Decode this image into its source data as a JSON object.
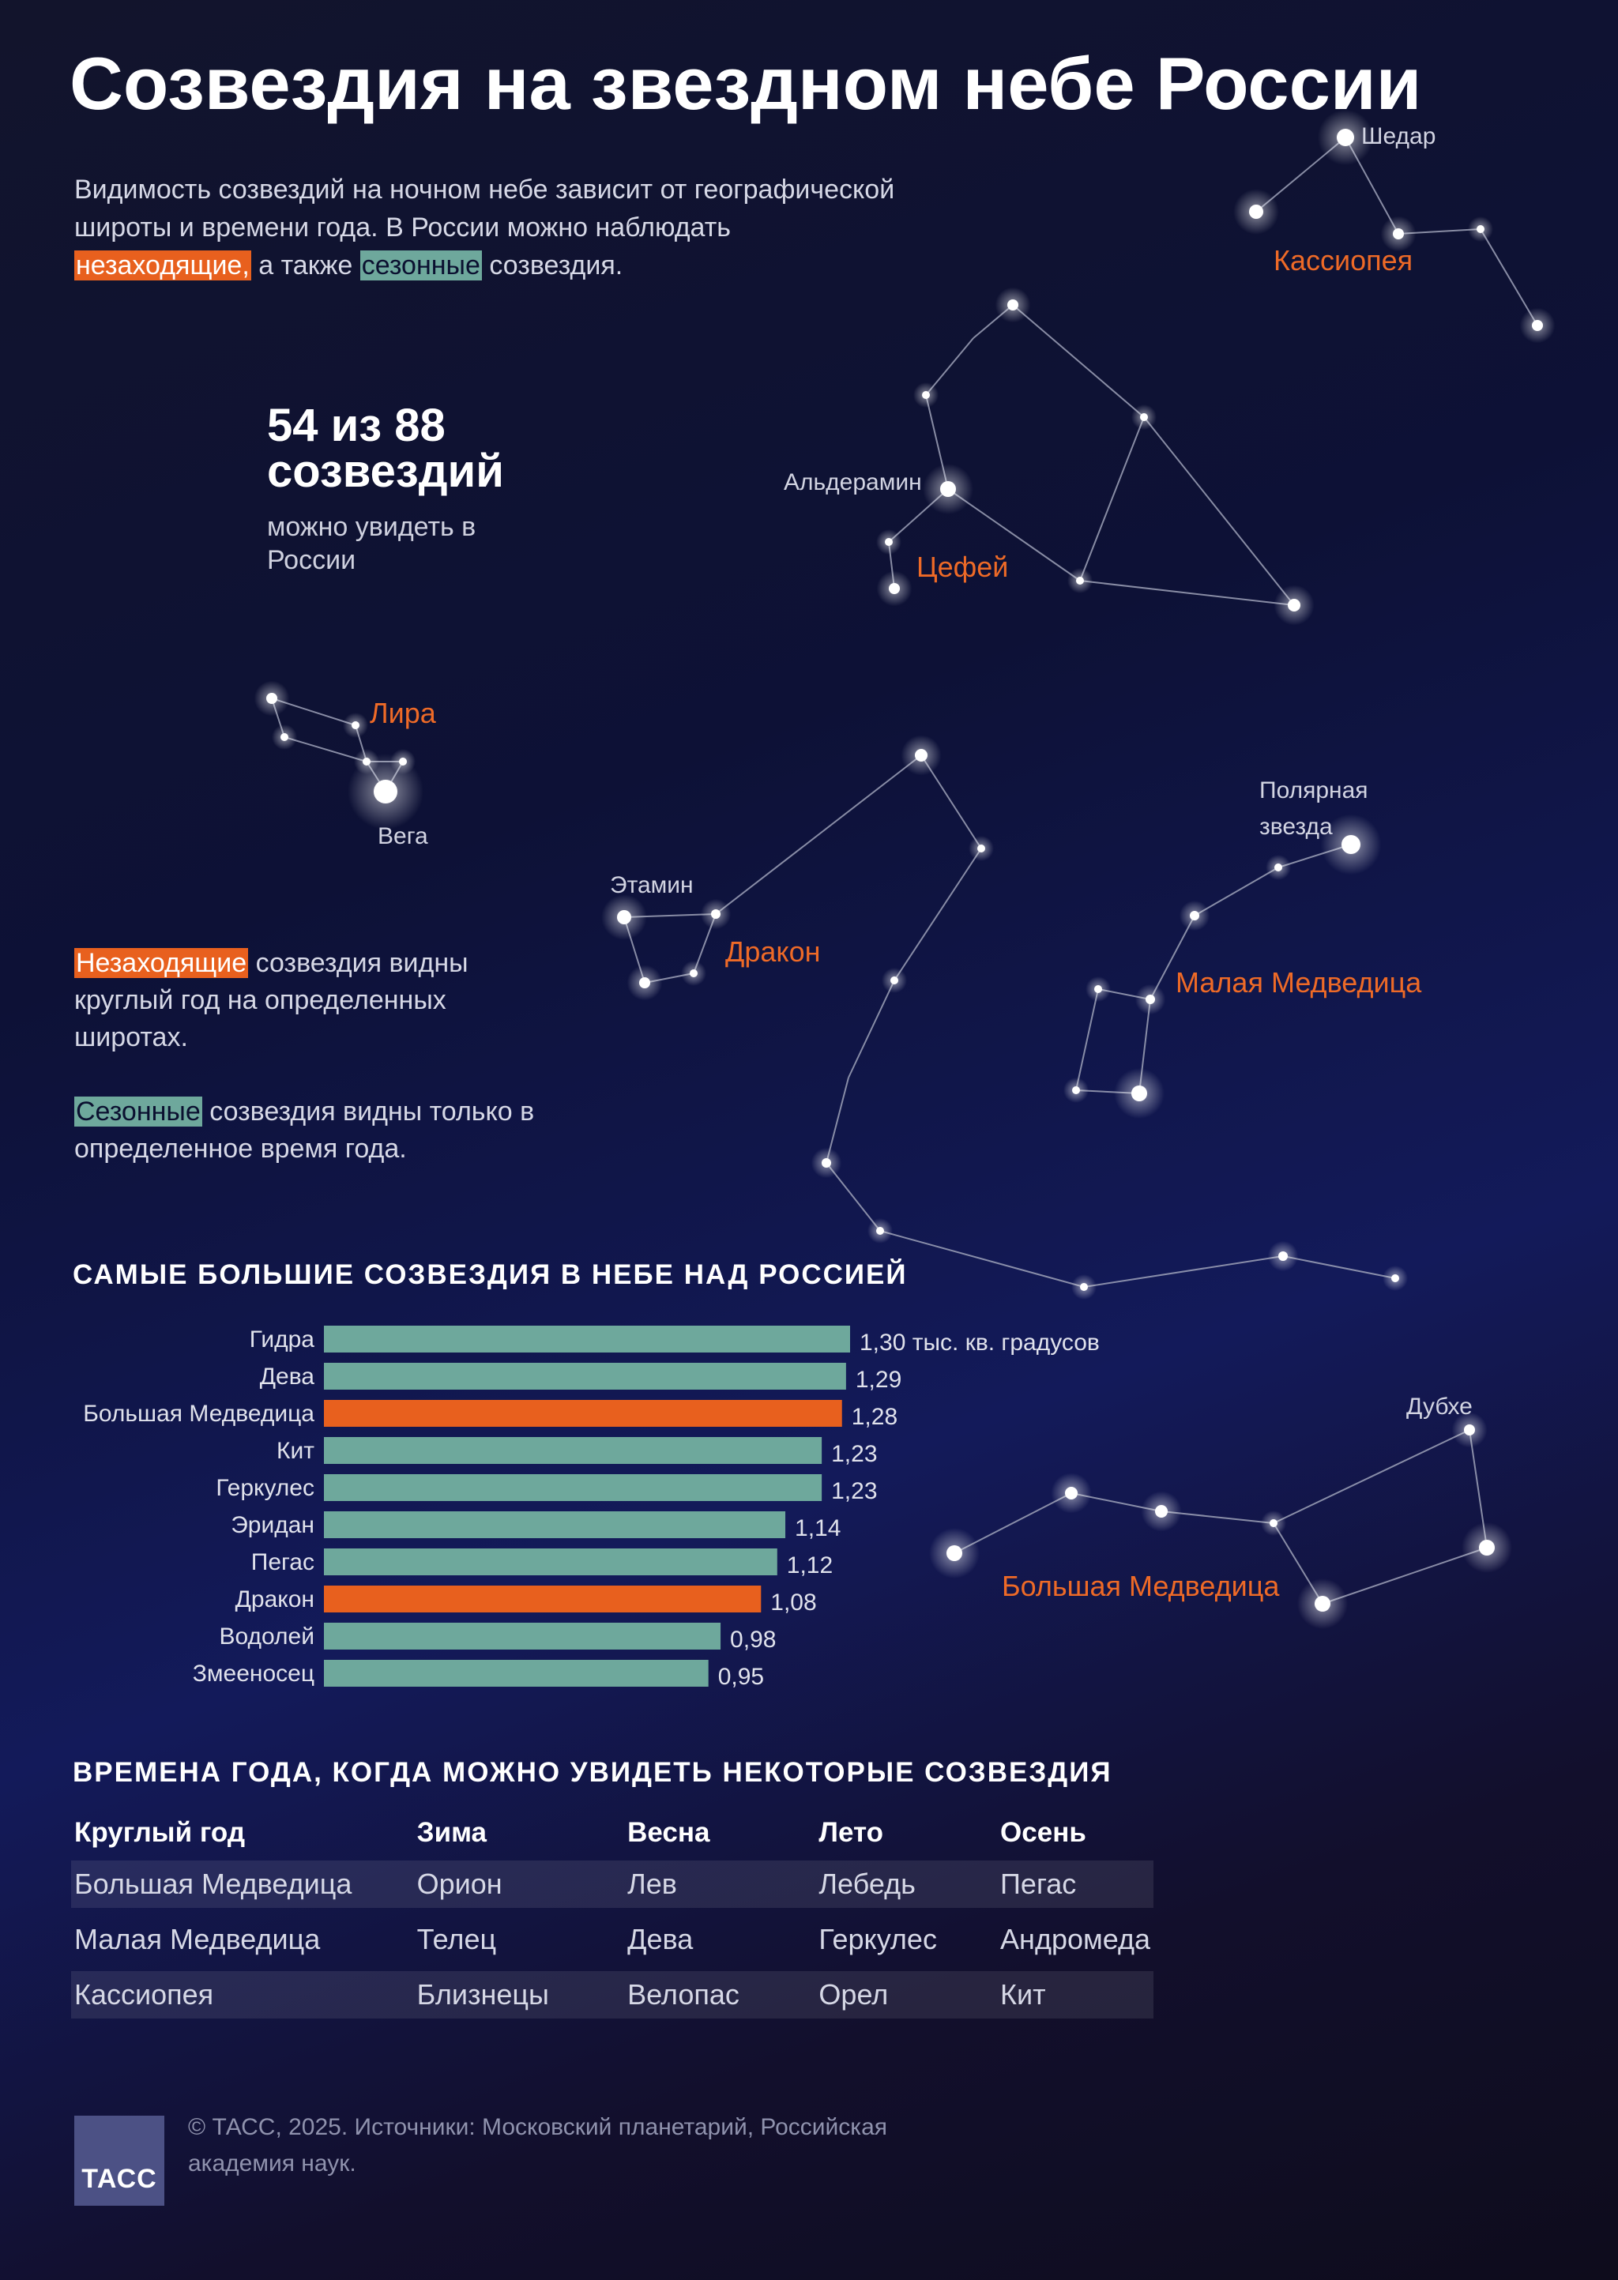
{
  "title": "Созвездия на звездном небе России",
  "intro": {
    "part1": "Видимость созвездий на ночном небе зависит от географической широты и времени года. В России можно наблюдать",
    "highlight_nonsetting": "незаходящие,",
    "part2": "а также",
    "highlight_seasonal": "сезонные",
    "part3": "созвездия."
  },
  "stat": {
    "number": "54 из 88",
    "word": "созвездий",
    "subtitle": "можно увидеть в России"
  },
  "legend": {
    "nonsetting_term": "Незаходящие",
    "nonsetting_text": "созвездия видны круглый год на определенных широтах.",
    "seasonal_term": "Сезонные",
    "seasonal_text": "созвездия видны только в определенное время года."
  },
  "colors": {
    "nonsetting": "#e8601e",
    "seasonal": "#6ea89c",
    "line": "#9ea2b8",
    "star": "#ffffff"
  },
  "sky": {
    "constellations": {
      "cassiopeia": "Кассиопея",
      "cepheus": "Цефей",
      "lyra": "Лира",
      "draco": "Дракон",
      "ursa_minor": "Малая Медведица",
      "ursa_major": "Большая Медведица"
    },
    "stars": {
      "shedar": "Шедар",
      "alderamin": "Альдерамин",
      "vega": "Вега",
      "etamin": "Этамин",
      "polaris_1": "Полярная",
      "polaris_2": "звезда",
      "dubhe": "Дубхе"
    }
  },
  "bar_section_title": "САМЫЕ БОЛЬШИЕ СОЗВЕЗДИЯ В НЕБЕ НАД РОССИЕЙ",
  "chart_data": {
    "type": "bar",
    "orientation": "horizontal",
    "categories": [
      "Гидра",
      "Дева",
      "Большая Медведица",
      "Кит",
      "Геркулес",
      "Эридан",
      "Пегас",
      "Дракон",
      "Водолей",
      "Змееносец"
    ],
    "values": [
      1.3,
      1.29,
      1.28,
      1.23,
      1.23,
      1.14,
      1.12,
      1.08,
      0.98,
      0.95
    ],
    "value_labels": [
      "1,30 тыс. кв. градусов",
      "1,29",
      "1,28",
      "1,23",
      "1,23",
      "1,14",
      "1,12",
      "1,08",
      "0,98",
      "0,95"
    ],
    "highlighted": [
      "Большая Медведица",
      "Дракон"
    ],
    "title": "САМЫЕ БОЛЬШИЕ СОЗВЕЗДИЯ В НЕБЕ НАД РОССИЕЙ",
    "xlabel": "",
    "ylabel": "",
    "grid": false
  },
  "seasons_section_title": "ВРЕМЕНА ГОДА, КОГДА МОЖНО УВИДЕТЬ НЕКОТОРЫЕ СОЗВЕЗДИЯ",
  "seasons_table": {
    "headers": [
      "Круглый год",
      "Зима",
      "Весна",
      "Лето",
      "Осень"
    ],
    "rows": [
      [
        "Большая Медведица",
        "Орион",
        "Лев",
        "Лебедь",
        "Пегас"
      ],
      [
        "Малая Медведица",
        "Телец",
        "Дева",
        "Геркулес",
        "Андромеда"
      ],
      [
        "Кассиопея",
        "Близнецы",
        "Велопас",
        "Орел",
        "Кит"
      ]
    ]
  },
  "footer": {
    "logo": "ТАСС",
    "source": "© ТАСС, 2025. Источники: Московский планетарий, Российская академия наук."
  }
}
